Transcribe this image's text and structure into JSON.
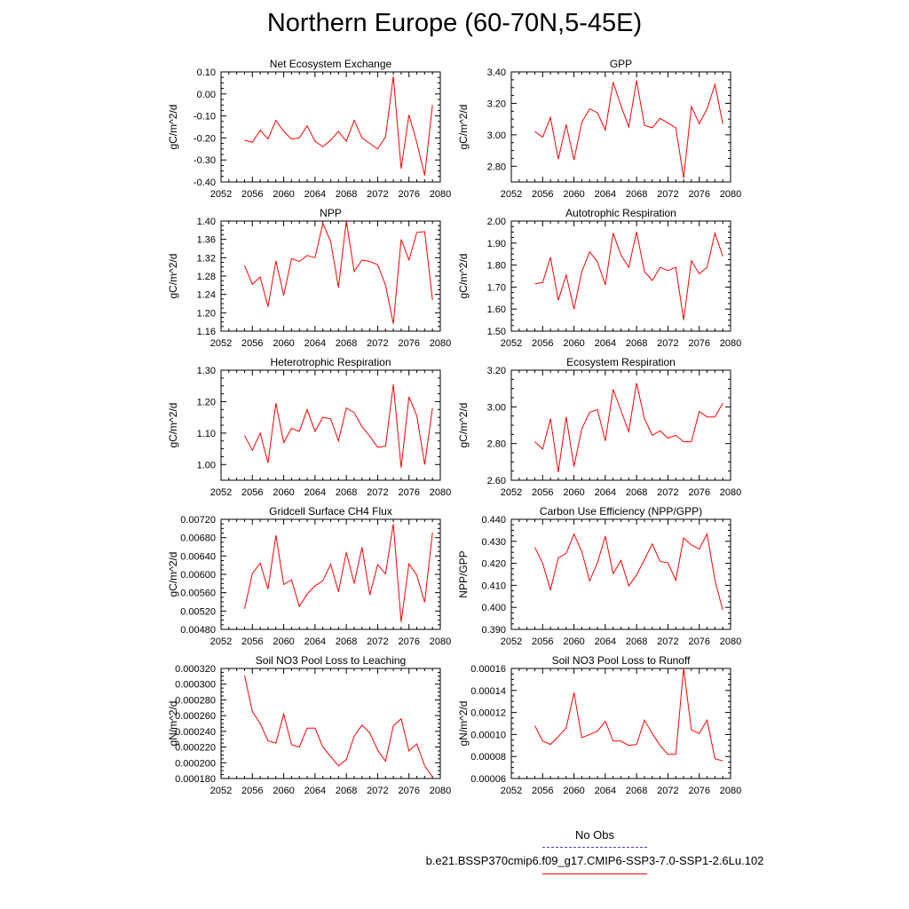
{
  "title": "Northern Europe (60-70N,5-45E)",
  "legend": {
    "entries": [
      {
        "label": "No Obs",
        "color": "#4444cc",
        "style": "dashed"
      },
      {
        "label": "b.e21.BSSP370cmip6.f09_g17.CMIP6-SSP3-7.0-SSP1-2.6Lu.102",
        "color": "#ff0000",
        "style": "solid"
      }
    ]
  },
  "chart_data": [
    {
      "type": "line",
      "title": "Net Ecosystem Exchange",
      "ylabel": "gC/m^2/d",
      "xlim": [
        2052,
        2080
      ],
      "ylim": [
        -0.4,
        0.1
      ],
      "xticks": [
        2052,
        2056,
        2060,
        2064,
        2068,
        2072,
        2076,
        2080
      ],
      "yticks": [
        "0.10",
        "0.00",
        "-0.10",
        "-0.20",
        "-0.30",
        "-0.40"
      ],
      "x": [
        2055,
        2056,
        2057,
        2058,
        2059,
        2060,
        2061,
        2062,
        2063,
        2064,
        2065,
        2066,
        2067,
        2068,
        2069,
        2070,
        2071,
        2072,
        2073,
        2074,
        2075,
        2076,
        2077,
        2078,
        2079
      ],
      "series": [
        {
          "color": "#ff0000",
          "values": [
            -0.21,
            -0.22,
            -0.165,
            -0.205,
            -0.12,
            -0.17,
            -0.205,
            -0.2,
            -0.145,
            -0.215,
            -0.24,
            -0.21,
            -0.17,
            -0.215,
            -0.12,
            -0.2,
            -0.225,
            -0.25,
            -0.195,
            0.08,
            -0.34,
            -0.095,
            -0.22,
            -0.37,
            -0.05
          ]
        }
      ]
    },
    {
      "type": "line",
      "title": "GPP",
      "ylabel": "gC/m^2/d",
      "xlim": [
        2052,
        2080
      ],
      "ylim": [
        2.7,
        3.4
      ],
      "xticks": [
        2052,
        2056,
        2060,
        2064,
        2068,
        2072,
        2076,
        2080
      ],
      "yticks": [
        "3.40",
        "3.20",
        "3.00",
        "2.80"
      ],
      "x": [
        2055,
        2056,
        2057,
        2058,
        2059,
        2060,
        2061,
        2062,
        2063,
        2064,
        2065,
        2066,
        2067,
        2068,
        2069,
        2070,
        2071,
        2072,
        2073,
        2074,
        2075,
        2076,
        2077,
        2078,
        2079
      ],
      "series": [
        {
          "color": "#ff0000",
          "values": [
            3.02,
            2.985,
            3.11,
            2.845,
            3.065,
            2.84,
            3.08,
            3.165,
            3.14,
            3.03,
            3.335,
            3.185,
            3.05,
            3.345,
            3.06,
            3.045,
            3.105,
            3.075,
            3.045,
            2.725,
            3.18,
            3.07,
            3.165,
            3.32,
            3.07
          ]
        }
      ]
    },
    {
      "type": "line",
      "title": "NPP",
      "ylabel": "gC/m^2/d",
      "xlim": [
        2052,
        2080
      ],
      "ylim": [
        1.16,
        1.4
      ],
      "xticks": [
        2052,
        2056,
        2060,
        2064,
        2068,
        2072,
        2076,
        2080
      ],
      "yticks": [
        "1.40",
        "1.36",
        "1.32",
        "1.28",
        "1.24",
        "1.20",
        "1.16"
      ],
      "x": [
        2055,
        2056,
        2057,
        2058,
        2059,
        2060,
        2061,
        2062,
        2063,
        2064,
        2065,
        2066,
        2067,
        2068,
        2069,
        2070,
        2071,
        2072,
        2073,
        2074,
        2075,
        2076,
        2077,
        2078,
        2079
      ],
      "series": [
        {
          "color": "#ff0000",
          "values": [
            1.303,
            1.262,
            1.278,
            1.213,
            1.313,
            1.238,
            1.318,
            1.312,
            1.325,
            1.32,
            1.395,
            1.355,
            1.255,
            1.4,
            1.29,
            1.315,
            1.312,
            1.305,
            1.26,
            1.176,
            1.36,
            1.315,
            1.375,
            1.377,
            1.228
          ]
        }
      ]
    },
    {
      "type": "line",
      "title": "Autotrophic Respiration",
      "ylabel": "gC/m^2/d",
      "xlim": [
        2052,
        2080
      ],
      "ylim": [
        1.5,
        2.0
      ],
      "xticks": [
        2052,
        2056,
        2060,
        2064,
        2068,
        2072,
        2076,
        2080
      ],
      "yticks": [
        "2.00",
        "1.90",
        "1.80",
        "1.70",
        "1.60",
        "1.50"
      ],
      "x": [
        2055,
        2056,
        2057,
        2058,
        2059,
        2060,
        2061,
        2062,
        2063,
        2064,
        2065,
        2066,
        2067,
        2068,
        2069,
        2070,
        2071,
        2072,
        2073,
        2074,
        2075,
        2076,
        2077,
        2078,
        2079
      ],
      "series": [
        {
          "color": "#ff0000",
          "values": [
            1.715,
            1.72,
            1.835,
            1.64,
            1.755,
            1.6,
            1.77,
            1.86,
            1.815,
            1.71,
            1.945,
            1.845,
            1.79,
            1.95,
            1.77,
            1.73,
            1.79,
            1.775,
            1.79,
            1.55,
            1.82,
            1.76,
            1.79,
            1.945,
            1.84
          ]
        }
      ]
    },
    {
      "type": "line",
      "title": "Heterotrophic Respiration",
      "ylabel": "gC/m^2/d",
      "xlim": [
        2052,
        2080
      ],
      "ylim": [
        0.95,
        1.3
      ],
      "xticks": [
        2052,
        2056,
        2060,
        2064,
        2068,
        2072,
        2076,
        2080
      ],
      "yticks": [
        "1.30",
        "1.20",
        "1.10",
        "1.00"
      ],
      "x": [
        2055,
        2056,
        2057,
        2058,
        2059,
        2060,
        2061,
        2062,
        2063,
        2064,
        2065,
        2066,
        2067,
        2068,
        2069,
        2070,
        2071,
        2072,
        2073,
        2074,
        2075,
        2076,
        2077,
        2078,
        2079
      ],
      "series": [
        {
          "color": "#ff0000",
          "values": [
            1.092,
            1.045,
            1.1,
            1.005,
            1.195,
            1.07,
            1.115,
            1.105,
            1.175,
            1.105,
            1.15,
            1.145,
            1.075,
            1.18,
            1.165,
            1.12,
            1.09,
            1.055,
            1.058,
            1.255,
            0.99,
            1.215,
            1.155,
            1.0,
            1.18
          ]
        }
      ]
    },
    {
      "type": "line",
      "title": "Ecosystem Respiration",
      "ylabel": "gC/m^2/d",
      "xlim": [
        2052,
        2080
      ],
      "ylim": [
        2.6,
        3.2
      ],
      "xticks": [
        2052,
        2056,
        2060,
        2064,
        2068,
        2072,
        2076,
        2080
      ],
      "yticks": [
        "3.20",
        "3.00",
        "2.80",
        "2.60"
      ],
      "x": [
        2055,
        2056,
        2057,
        2058,
        2059,
        2060,
        2061,
        2062,
        2063,
        2064,
        2065,
        2066,
        2067,
        2068,
        2069,
        2070,
        2071,
        2072,
        2073,
        2074,
        2075,
        2076,
        2077,
        2078,
        2079
      ],
      "series": [
        {
          "color": "#ff0000",
          "values": [
            2.81,
            2.77,
            2.935,
            2.645,
            2.945,
            2.675,
            2.88,
            2.97,
            2.985,
            2.815,
            3.095,
            2.98,
            2.865,
            3.13,
            2.935,
            2.845,
            2.87,
            2.83,
            2.845,
            2.81,
            2.81,
            2.975,
            2.945,
            2.945,
            3.02
          ]
        }
      ]
    },
    {
      "type": "line",
      "title": "Gridcell Surface CH4 Flux",
      "ylabel": "gC/m^2/d",
      "xlim": [
        2052,
        2080
      ],
      "ylim": [
        0.0048,
        0.0072
      ],
      "xticks": [
        2052,
        2056,
        2060,
        2064,
        2068,
        2072,
        2076,
        2080
      ],
      "yticks": [
        "0.00720",
        "0.00680",
        "0.00640",
        "0.00600",
        "0.00560",
        "0.00520",
        "0.00480"
      ],
      "x": [
        2055,
        2056,
        2057,
        2058,
        2059,
        2060,
        2061,
        2062,
        2063,
        2064,
        2065,
        2066,
        2067,
        2068,
        2069,
        2070,
        2071,
        2072,
        2073,
        2074,
        2075,
        2076,
        2077,
        2078,
        2079
      ],
      "series": [
        {
          "color": "#ff0000",
          "values": [
            0.00525,
            0.00602,
            0.00624,
            0.00568,
            0.00685,
            0.00578,
            0.00588,
            0.0053,
            0.00557,
            0.00575,
            0.00586,
            0.00622,
            0.00562,
            0.00648,
            0.0058,
            0.00659,
            0.00555,
            0.00621,
            0.00601,
            0.0071,
            0.00496,
            0.00623,
            0.00598,
            0.00539,
            0.00691
          ]
        }
      ]
    },
    {
      "type": "line",
      "title": "Carbon Use Efficiency (NPP/GPP)",
      "ylabel": "NPP/GPP",
      "xlim": [
        2052,
        2080
      ],
      "ylim": [
        0.39,
        0.44
      ],
      "xticks": [
        2052,
        2056,
        2060,
        2064,
        2068,
        2072,
        2076,
        2080
      ],
      "yticks": [
        "0.440",
        "0.430",
        "0.420",
        "0.410",
        "0.400",
        "0.390"
      ],
      "x": [
        2055,
        2056,
        2057,
        2058,
        2059,
        2060,
        2061,
        2062,
        2063,
        2064,
        2065,
        2066,
        2067,
        2068,
        2069,
        2070,
        2071,
        2072,
        2073,
        2074,
        2075,
        2076,
        2077,
        2078,
        2079
      ],
      "series": [
        {
          "color": "#ff0000",
          "values": [
            0.4272,
            0.42,
            0.408,
            0.4225,
            0.4245,
            0.4333,
            0.4253,
            0.412,
            0.4203,
            0.4323,
            0.4153,
            0.4213,
            0.4097,
            0.4147,
            0.4217,
            0.4288,
            0.4208,
            0.4203,
            0.4123,
            0.4315,
            0.4283,
            0.4265,
            0.4333,
            0.4123,
            0.3988
          ]
        }
      ]
    },
    {
      "type": "line",
      "title": "Soil NO3 Pool Loss to Leaching",
      "ylabel": "gN/m^2/d",
      "xlim": [
        2052,
        2080
      ],
      "ylim": [
        0.00018,
        0.00032
      ],
      "xticks": [
        2052,
        2056,
        2060,
        2064,
        2068,
        2072,
        2076,
        2080
      ],
      "yticks": [
        "0.000320",
        "0.000300",
        "0.000280",
        "0.000260",
        "0.000240",
        "0.000220",
        "0.000200",
        "0.000180"
      ],
      "x": [
        2055,
        2056,
        2057,
        2058,
        2059,
        2060,
        2061,
        2062,
        2063,
        2064,
        2065,
        2066,
        2067,
        2068,
        2069,
        2070,
        2071,
        2072,
        2073,
        2074,
        2075,
        2076,
        2077,
        2078,
        2079
      ],
      "series": [
        {
          "color": "#ff0000",
          "values": [
            0.000311,
            0.000265,
            0.00025,
            0.000228,
            0.000225,
            0.000262,
            0.000223,
            0.00022,
            0.000244,
            0.000244,
            0.00022,
            0.000208,
            0.000196,
            0.000204,
            0.000234,
            0.000248,
            0.000238,
            0.000216,
            0.000202,
            0.000247,
            0.000256,
            0.000215,
            0.000224,
            0.000196,
            0.000182
          ]
        }
      ]
    },
    {
      "type": "line",
      "title": "Soil NO3 Pool Loss to Runoff",
      "ylabel": "gN/m^2/d",
      "xlim": [
        2052,
        2080
      ],
      "ylim": [
        6e-05,
        0.00016
      ],
      "xticks": [
        2052,
        2056,
        2060,
        2064,
        2068,
        2072,
        2076,
        2080
      ],
      "yticks": [
        "0.00016",
        "0.00014",
        "0.00012",
        "0.00010",
        "0.00008",
        "0.00006"
      ],
      "x": [
        2055,
        2056,
        2057,
        2058,
        2059,
        2060,
        2061,
        2062,
        2063,
        2064,
        2065,
        2066,
        2067,
        2068,
        2069,
        2070,
        2071,
        2072,
        2073,
        2074,
        2075,
        2076,
        2077,
        2078,
        2079
      ],
      "series": [
        {
          "color": "#ff0000",
          "values": [
            0.000108,
            9.4e-05,
            9.1e-05,
            9.8e-05,
            0.000106,
            0.000138,
            9.7e-05,
            0.0001,
            0.000103,
            0.000112,
            9.4e-05,
            9.4e-05,
            9e-05,
            9.1e-05,
            0.000113,
            0.000101,
            9e-05,
            8.2e-05,
            8.2e-05,
            0.00016,
            0.000104,
            0.000101,
            0.000113,
            7.8e-05,
            7.6e-05
          ]
        }
      ]
    }
  ]
}
